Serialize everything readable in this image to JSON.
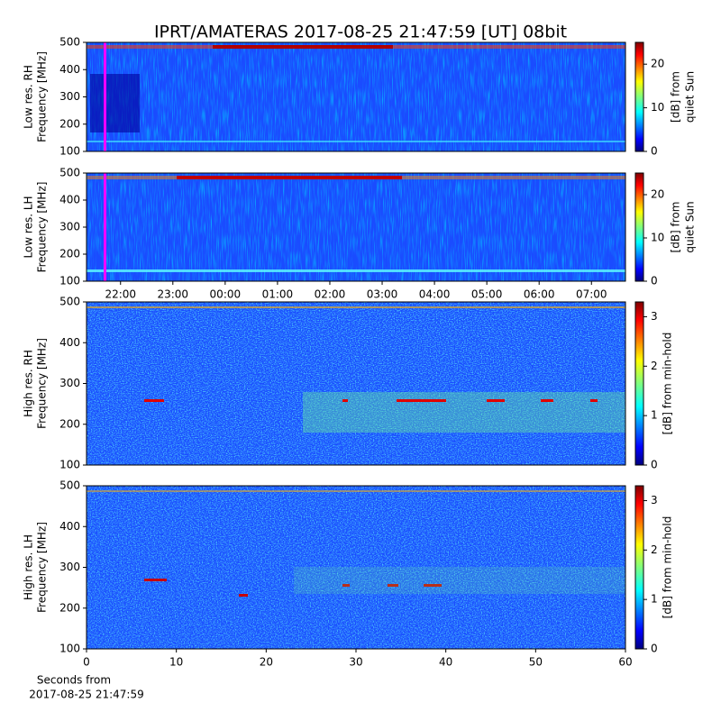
{
  "chart_data": [
    {
      "type": "spectrogram",
      "title": "IPRT/AMATERAS 2017-08-25 21:47:59 [UT]   08bit",
      "ylabel": [
        "Low res. RH",
        "Frequency [MHz]"
      ],
      "ylim": [
        100,
        500
      ],
      "yticks": [
        100,
        200,
        300,
        400,
        500
      ],
      "xlim": [
        21.35,
        31.65
      ],
      "colormap": "jet",
      "clim": [
        0,
        25
      ],
      "cticks": [
        0,
        10,
        20
      ],
      "colorbar_label": [
        "[dB] from",
        "quiet Sun"
      ]
    },
    {
      "type": "spectrogram",
      "ylabel": [
        "Low res. LH",
        "Frequency [MHz]"
      ],
      "ylim": [
        100,
        500
      ],
      "yticks": [
        100,
        200,
        300,
        400,
        500
      ],
      "xlim": [
        21.35,
        31.65
      ],
      "xticks": [
        {
          "value": 22,
          "label": "22:00"
        },
        {
          "value": 23,
          "label": "23:00"
        },
        {
          "value": 24,
          "label": "00:00"
        },
        {
          "value": 25,
          "label": "01:00"
        },
        {
          "value": 26,
          "label": "02:00"
        },
        {
          "value": 27,
          "label": "03:00"
        },
        {
          "value": 28,
          "label": "04:00"
        },
        {
          "value": 29,
          "label": "05:00"
        },
        {
          "value": 30,
          "label": "06:00"
        },
        {
          "value": 31,
          "label": "07:00"
        }
      ],
      "colormap": "jet",
      "clim": [
        0,
        25
      ],
      "cticks": [
        0,
        10,
        20
      ],
      "colorbar_label": [
        "[dB] from",
        "quiet Sun"
      ]
    },
    {
      "type": "spectrogram",
      "ylabel": [
        "High res. RH",
        "Frequency [MHz]"
      ],
      "ylim": [
        100,
        500
      ],
      "yticks": [
        100,
        200,
        300,
        400,
        500
      ],
      "xlim": [
        0,
        60
      ],
      "colormap": "jet",
      "clim": [
        0,
        3.3
      ],
      "cticks": [
        0,
        1,
        2,
        3
      ],
      "colorbar_label": [
        "[dB] from min-hold"
      ]
    },
    {
      "type": "spectrogram",
      "ylabel": [
        "High res. LH",
        "Frequency [MHz]"
      ],
      "ylim": [
        100,
        500
      ],
      "yticks": [
        100,
        200,
        300,
        400,
        500
      ],
      "xlim": [
        0,
        60
      ],
      "xticks": [
        0,
        10,
        20,
        30,
        40,
        50,
        60
      ],
      "xlabel": [
        "Seconds from",
        "2017-08-25 21:47:59"
      ],
      "colormap": "jet",
      "clim": [
        0,
        3.3
      ],
      "cticks": [
        0,
        1,
        2,
        3
      ],
      "colorbar_label": [
        "[dB] from min-hold"
      ]
    }
  ]
}
